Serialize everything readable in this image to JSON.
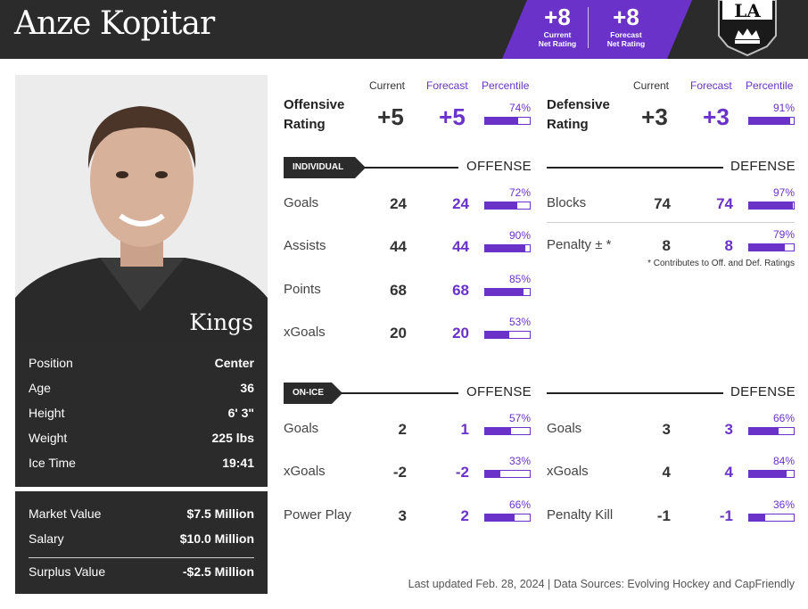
{
  "header": {
    "player_name": "Anze Kopitar",
    "current_net": {
      "value": "+8",
      "label_line1": "Current",
      "label_line2": "Net Rating"
    },
    "forecast_net": {
      "value": "+8",
      "label_line1": "Forecast",
      "label_line2": "Net Rating"
    },
    "team_logo_icon": "la-kings-logo-icon",
    "accent_color": "#6a32c9",
    "dark_color": "#2b2b2b"
  },
  "photo": {
    "team_name": "Kings"
  },
  "bio": [
    {
      "label": "Position",
      "value": "Center"
    },
    {
      "label": "Age",
      "value": "36"
    },
    {
      "label": "Height",
      "value": "6' 3\""
    },
    {
      "label": "Weight",
      "value": "225 lbs"
    },
    {
      "label": "Ice Time",
      "value": "19:41"
    }
  ],
  "contract": {
    "market": {
      "label": "Market Value",
      "value": "$7.5 Million"
    },
    "salary": {
      "label": "Salary",
      "value": "$10.0 Million"
    },
    "surplus": {
      "label": "Surplus Value",
      "value": "-$2.5 Million"
    }
  },
  "columns": {
    "current": "Current",
    "forecast": "Forecast",
    "percentile": "Percentile"
  },
  "offensive_rating": {
    "label_line1": "Offensive",
    "label_line2": "Rating",
    "current": "+5",
    "forecast": "+5",
    "percentile": 74,
    "percentile_label": "74%"
  },
  "defensive_rating": {
    "label_line1": "Defensive",
    "label_line2": "Rating",
    "current": "+3",
    "forecast": "+3",
    "percentile": 91,
    "percentile_label": "91%"
  },
  "individual": {
    "tag": "INDIVIDUAL",
    "offense_title": "OFFENSE",
    "defense_title": "DEFENSE",
    "offense": [
      {
        "label": "Goals",
        "current": "24",
        "forecast": "24",
        "percentile": 72,
        "percentile_label": "72%"
      },
      {
        "label": "Assists",
        "current": "44",
        "forecast": "44",
        "percentile": 90,
        "percentile_label": "90%"
      },
      {
        "label": "Points",
        "current": "68",
        "forecast": "68",
        "percentile": 85,
        "percentile_label": "85%"
      },
      {
        "label": "xGoals",
        "current": "20",
        "forecast": "20",
        "percentile": 53,
        "percentile_label": "53%"
      }
    ],
    "defense": [
      {
        "label": "Blocks",
        "current": "74",
        "forecast": "74",
        "percentile": 97,
        "percentile_label": "97%"
      },
      {
        "label": "Penalty ± *",
        "current": "8",
        "forecast": "8",
        "percentile": 79,
        "percentile_label": "79%"
      }
    ],
    "note": "* Contributes to Off. and Def. Ratings"
  },
  "on_ice": {
    "tag": "ON-ICE",
    "offense_title": "OFFENSE",
    "defense_title": "DEFENSE",
    "offense": [
      {
        "label": "Goals",
        "current": "2",
        "forecast": "1",
        "percentile": 57,
        "percentile_label": "57%"
      },
      {
        "label": "xGoals",
        "current": "-2",
        "forecast": "-2",
        "percentile": 33,
        "percentile_label": "33%"
      },
      {
        "label": "Power Play",
        "current": "3",
        "forecast": "2",
        "percentile": 66,
        "percentile_label": "66%"
      }
    ],
    "defense": [
      {
        "label": "Goals",
        "current": "3",
        "forecast": "3",
        "percentile": 66,
        "percentile_label": "66%"
      },
      {
        "label": "xGoals",
        "current": "4",
        "forecast": "4",
        "percentile": 84,
        "percentile_label": "84%"
      },
      {
        "label": "Penalty Kill",
        "current": "-1",
        "forecast": "-1",
        "percentile": 36,
        "percentile_label": "36%"
      }
    ]
  },
  "footer": "Last updated Feb. 28, 2024 | Data Sources: Evolving Hockey and CapFriendly"
}
